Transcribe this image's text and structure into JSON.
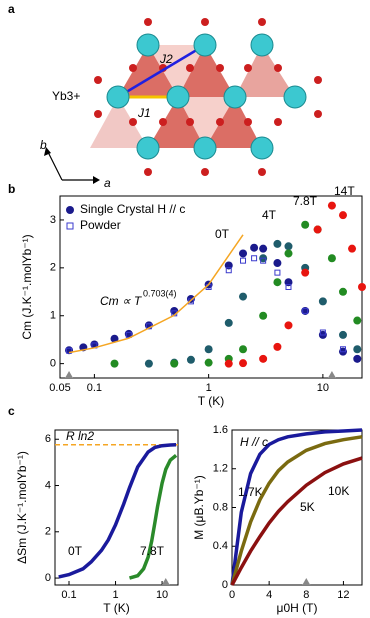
{
  "diagram": {
    "panel_a": "a",
    "panel_b": "b",
    "panel_c": "c",
    "j2": "J2",
    "j1": "J1",
    "ion": "Yb3+",
    "axis_b": "b",
    "axis_a": "a"
  },
  "chart_data": [
    {
      "type": "scatter",
      "xlabel": "T (K)",
      "ylabel": "Cm (J.K⁻¹.molYb⁻¹)",
      "xlog": true,
      "xlim": [
        0.05,
        22
      ],
      "xticks": [
        0.05,
        0.1,
        1,
        10
      ],
      "ylim": [
        -0.3,
        3.5
      ],
      "yticks": [
        0,
        1,
        2,
        3
      ],
      "legend_crystal": "Single Crystal H // c",
      "markers_x": [
        0.06,
        12
      ],
      "series": [
        {
          "name": "0T",
          "color": "#1a1a8c",
          "style": "circle",
          "x": [
            0.06,
            0.08,
            0.1,
            0.15,
            0.2,
            0.3,
            0.5,
            0.7,
            1,
            1.5,
            2,
            2.5,
            3,
            4,
            5,
            7,
            10,
            15,
            20
          ],
          "values": [
            0.28,
            0.34,
            0.4,
            0.52,
            0.62,
            0.8,
            1.1,
            1.35,
            1.65,
            2.05,
            2.3,
            2.42,
            2.4,
            2.1,
            1.7,
            1.1,
            0.6,
            0.25,
            0.1
          ]
        },
        {
          "name": "4T",
          "color": "#1f5c6b",
          "style": "circle",
          "x": [
            0.3,
            0.5,
            0.7,
            1,
            1.5,
            2,
            3,
            4,
            5,
            7,
            10,
            15,
            20
          ],
          "values": [
            0,
            0.02,
            0.08,
            0.3,
            0.85,
            1.4,
            2.2,
            2.5,
            2.45,
            2.0,
            1.3,
            0.6,
            0.3
          ]
        },
        {
          "name": "7.8T",
          "color": "#228b22",
          "style": "circle",
          "x": [
            0.15,
            0.5,
            1,
            1.5,
            2,
            3,
            4,
            5,
            7,
            9,
            12,
            15,
            20
          ],
          "values": [
            0,
            0,
            0.02,
            0.1,
            0.3,
            1.0,
            1.7,
            2.3,
            2.9,
            2.8,
            2.2,
            1.5,
            0.9
          ]
        },
        {
          "name": "14T",
          "color": "#e8150f",
          "style": "circle",
          "x": [
            1.5,
            2,
            3,
            4,
            5,
            7,
            9,
            12,
            15,
            18,
            22
          ],
          "values": [
            0,
            0.01,
            0.1,
            0.35,
            0.8,
            1.9,
            2.8,
            3.3,
            3.1,
            2.4,
            1.6
          ]
        },
        {
          "name": "Powder",
          "color": "#3a3acc",
          "style": "square",
          "x": [
            0.06,
            0.1,
            0.2,
            0.3,
            0.5,
            0.7,
            1,
            1.5,
            2,
            2.5,
            3,
            4,
            5,
            7,
            10,
            15
          ],
          "values": [
            0.27,
            0.38,
            0.6,
            0.78,
            1.05,
            1.3,
            1.6,
            1.95,
            2.15,
            2.2,
            2.15,
            1.9,
            1.6,
            1.1,
            0.65,
            0.3
          ]
        }
      ],
      "fit": {
        "label": "Cm ∝ T",
        "exponent": "0.703(4)",
        "color": "#f5a623",
        "x": [
          0.06,
          0.1,
          0.2,
          0.5,
          1,
          2
        ],
        "values": [
          0.23,
          0.33,
          0.53,
          1.01,
          1.65,
          2.69
        ]
      }
    },
    {
      "type": "line",
      "xlabel": "T (K)",
      "ylabel": "ΔSm (J.K⁻¹.molYb⁻¹)",
      "xlog": true,
      "xlim": [
        0.05,
        22
      ],
      "xticks": [
        0.1,
        1,
        10
      ],
      "ylim": [
        -0.3,
        6.4
      ],
      "yticks": [
        0,
        2,
        4,
        6
      ],
      "markers_x": [
        12
      ],
      "reference_line": {
        "value": 5.76,
        "label": "R ln2",
        "color": "#f5a623"
      },
      "series": [
        {
          "name": "0T",
          "color": "#1a1a9c",
          "x": [
            0.06,
            0.1,
            0.2,
            0.3,
            0.5,
            0.7,
            1,
            1.5,
            2,
            3,
            5,
            7,
            10,
            15,
            20
          ],
          "values": [
            0.05,
            0.15,
            0.4,
            0.7,
            1.2,
            1.65,
            2.3,
            3.2,
            3.9,
            4.8,
            5.45,
            5.65,
            5.72,
            5.75,
            5.76
          ]
        },
        {
          "name": "7.8T",
          "color": "#2a8a2a",
          "x": [
            2,
            3,
            4,
            5,
            6,
            7,
            8,
            10,
            12,
            15,
            20
          ],
          "values": [
            0,
            0.1,
            0.4,
            0.9,
            1.6,
            2.4,
            3.1,
            4.1,
            4.7,
            5.1,
            5.3
          ]
        }
      ]
    },
    {
      "type": "line",
      "xlabel": "μ0H (T)",
      "ylabel": "M (μB.Yb⁻¹)",
      "xlog": false,
      "annotation": "H // c",
      "xlim": [
        0,
        14
      ],
      "xticks": [
        0,
        4,
        8,
        12
      ],
      "ylim": [
        0,
        1.6
      ],
      "yticks": [
        0,
        0.4,
        0.8,
        1.2,
        1.6
      ],
      "markers_x": [
        8
      ],
      "series": [
        {
          "name": "1.7K",
          "color": "#1a1a9c",
          "x": [
            0,
            1,
            2,
            3,
            4,
            5,
            6,
            8,
            10,
            12,
            14
          ],
          "values": [
            0,
            0.75,
            1.15,
            1.35,
            1.45,
            1.5,
            1.53,
            1.56,
            1.58,
            1.59,
            1.6
          ]
        },
        {
          "name": "5K",
          "color": "#7a6a10",
          "x": [
            0,
            1,
            2,
            3,
            4,
            5,
            6,
            8,
            10,
            12,
            14
          ],
          "values": [
            0,
            0.35,
            0.65,
            0.88,
            1.05,
            1.18,
            1.27,
            1.39,
            1.46,
            1.5,
            1.53
          ]
        },
        {
          "name": "10K",
          "color": "#8b1010",
          "x": [
            0,
            1,
            2,
            3,
            4,
            5,
            6,
            8,
            10,
            12,
            14
          ],
          "values": [
            0,
            0.18,
            0.35,
            0.5,
            0.64,
            0.76,
            0.86,
            1.03,
            1.16,
            1.25,
            1.31
          ]
        }
      ]
    }
  ]
}
